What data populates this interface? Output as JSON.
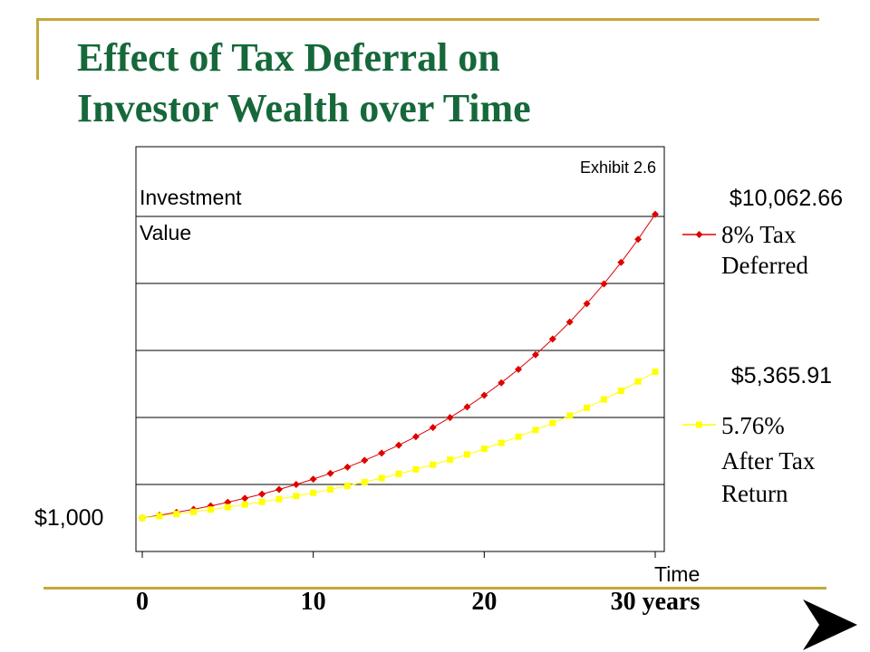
{
  "header": {
    "title_line1": "Effect of Tax Deferral on",
    "title_line2": "Investor Wealth over Time"
  },
  "colors": {
    "title": "#16683a",
    "accent_rule": "#c4a83a",
    "series_deferred": "#e00000",
    "series_after_tax": "#ffff00"
  },
  "nav": {
    "icon": "next-arrow-icon"
  },
  "chart_data": {
    "type": "line",
    "annotation": "Exhibit 2.6",
    "ylabel_line1": "Investment",
    "ylabel_line2": "Value",
    "xlabel": "Time",
    "x_ticks": [
      "0",
      "10",
      "20",
      "30 years"
    ],
    "xlim": [
      0,
      31
    ],
    "ylim": [
      0,
      11000
    ],
    "grid": "horizontal",
    "start_label": "$1,000",
    "series": [
      {
        "name": "8% Tax Deferred",
        "legend_line1": "8% Tax",
        "legend_line2": "Deferred",
        "end_label": "$10,062.66",
        "color": "#e00000",
        "marker": "diamond",
        "rate": 0.08,
        "x": [
          0,
          1,
          2,
          3,
          4,
          5,
          6,
          7,
          8,
          9,
          10,
          11,
          12,
          13,
          14,
          15,
          16,
          17,
          18,
          19,
          20,
          21,
          22,
          23,
          24,
          25,
          26,
          27,
          28,
          29,
          30
        ],
        "values": [
          1000,
          1080,
          1166.4,
          1259.71,
          1360.49,
          1469.33,
          1586.87,
          1713.82,
          1850.93,
          1999.0,
          2158.92,
          2331.64,
          2518.17,
          2719.62,
          2937.19,
          3172.17,
          3425.94,
          3700.02,
          3996.02,
          4315.7,
          4660.96,
          5033.83,
          5436.54,
          5871.46,
          6341.18,
          6848.48,
          7396.35,
          7988.06,
          8627.11,
          9317.27,
          10062.66
        ]
      },
      {
        "name": "5.76% After Tax Return",
        "legend_line1": "5.76%",
        "legend_line2": "After Tax",
        "legend_line3": "Return",
        "end_label": "$5,365.91",
        "color": "#ffff00",
        "marker": "square",
        "rate": 0.0576,
        "x": [
          0,
          1,
          2,
          3,
          4,
          5,
          6,
          7,
          8,
          9,
          10,
          11,
          12,
          13,
          14,
          15,
          16,
          17,
          18,
          19,
          20,
          21,
          22,
          23,
          24,
          25,
          26,
          27,
          28,
          29,
          30
        ],
        "values": [
          1000,
          1057.6,
          1118.52,
          1182.94,
          1251.08,
          1323.14,
          1399.35,
          1479.96,
          1565.2,
          1655.36,
          1750.71,
          1851.55,
          1958.2,
          2070.99,
          2190.28,
          2316.44,
          2449.87,
          2590.98,
          2740.22,
          2898.06,
          3064.99,
          3241.53,
          3428.25,
          3625.71,
          3834.55,
          4055.42,
          4289.02,
          4536.06,
          4797.35,
          5073.67,
          5365.91
        ]
      }
    ]
  }
}
